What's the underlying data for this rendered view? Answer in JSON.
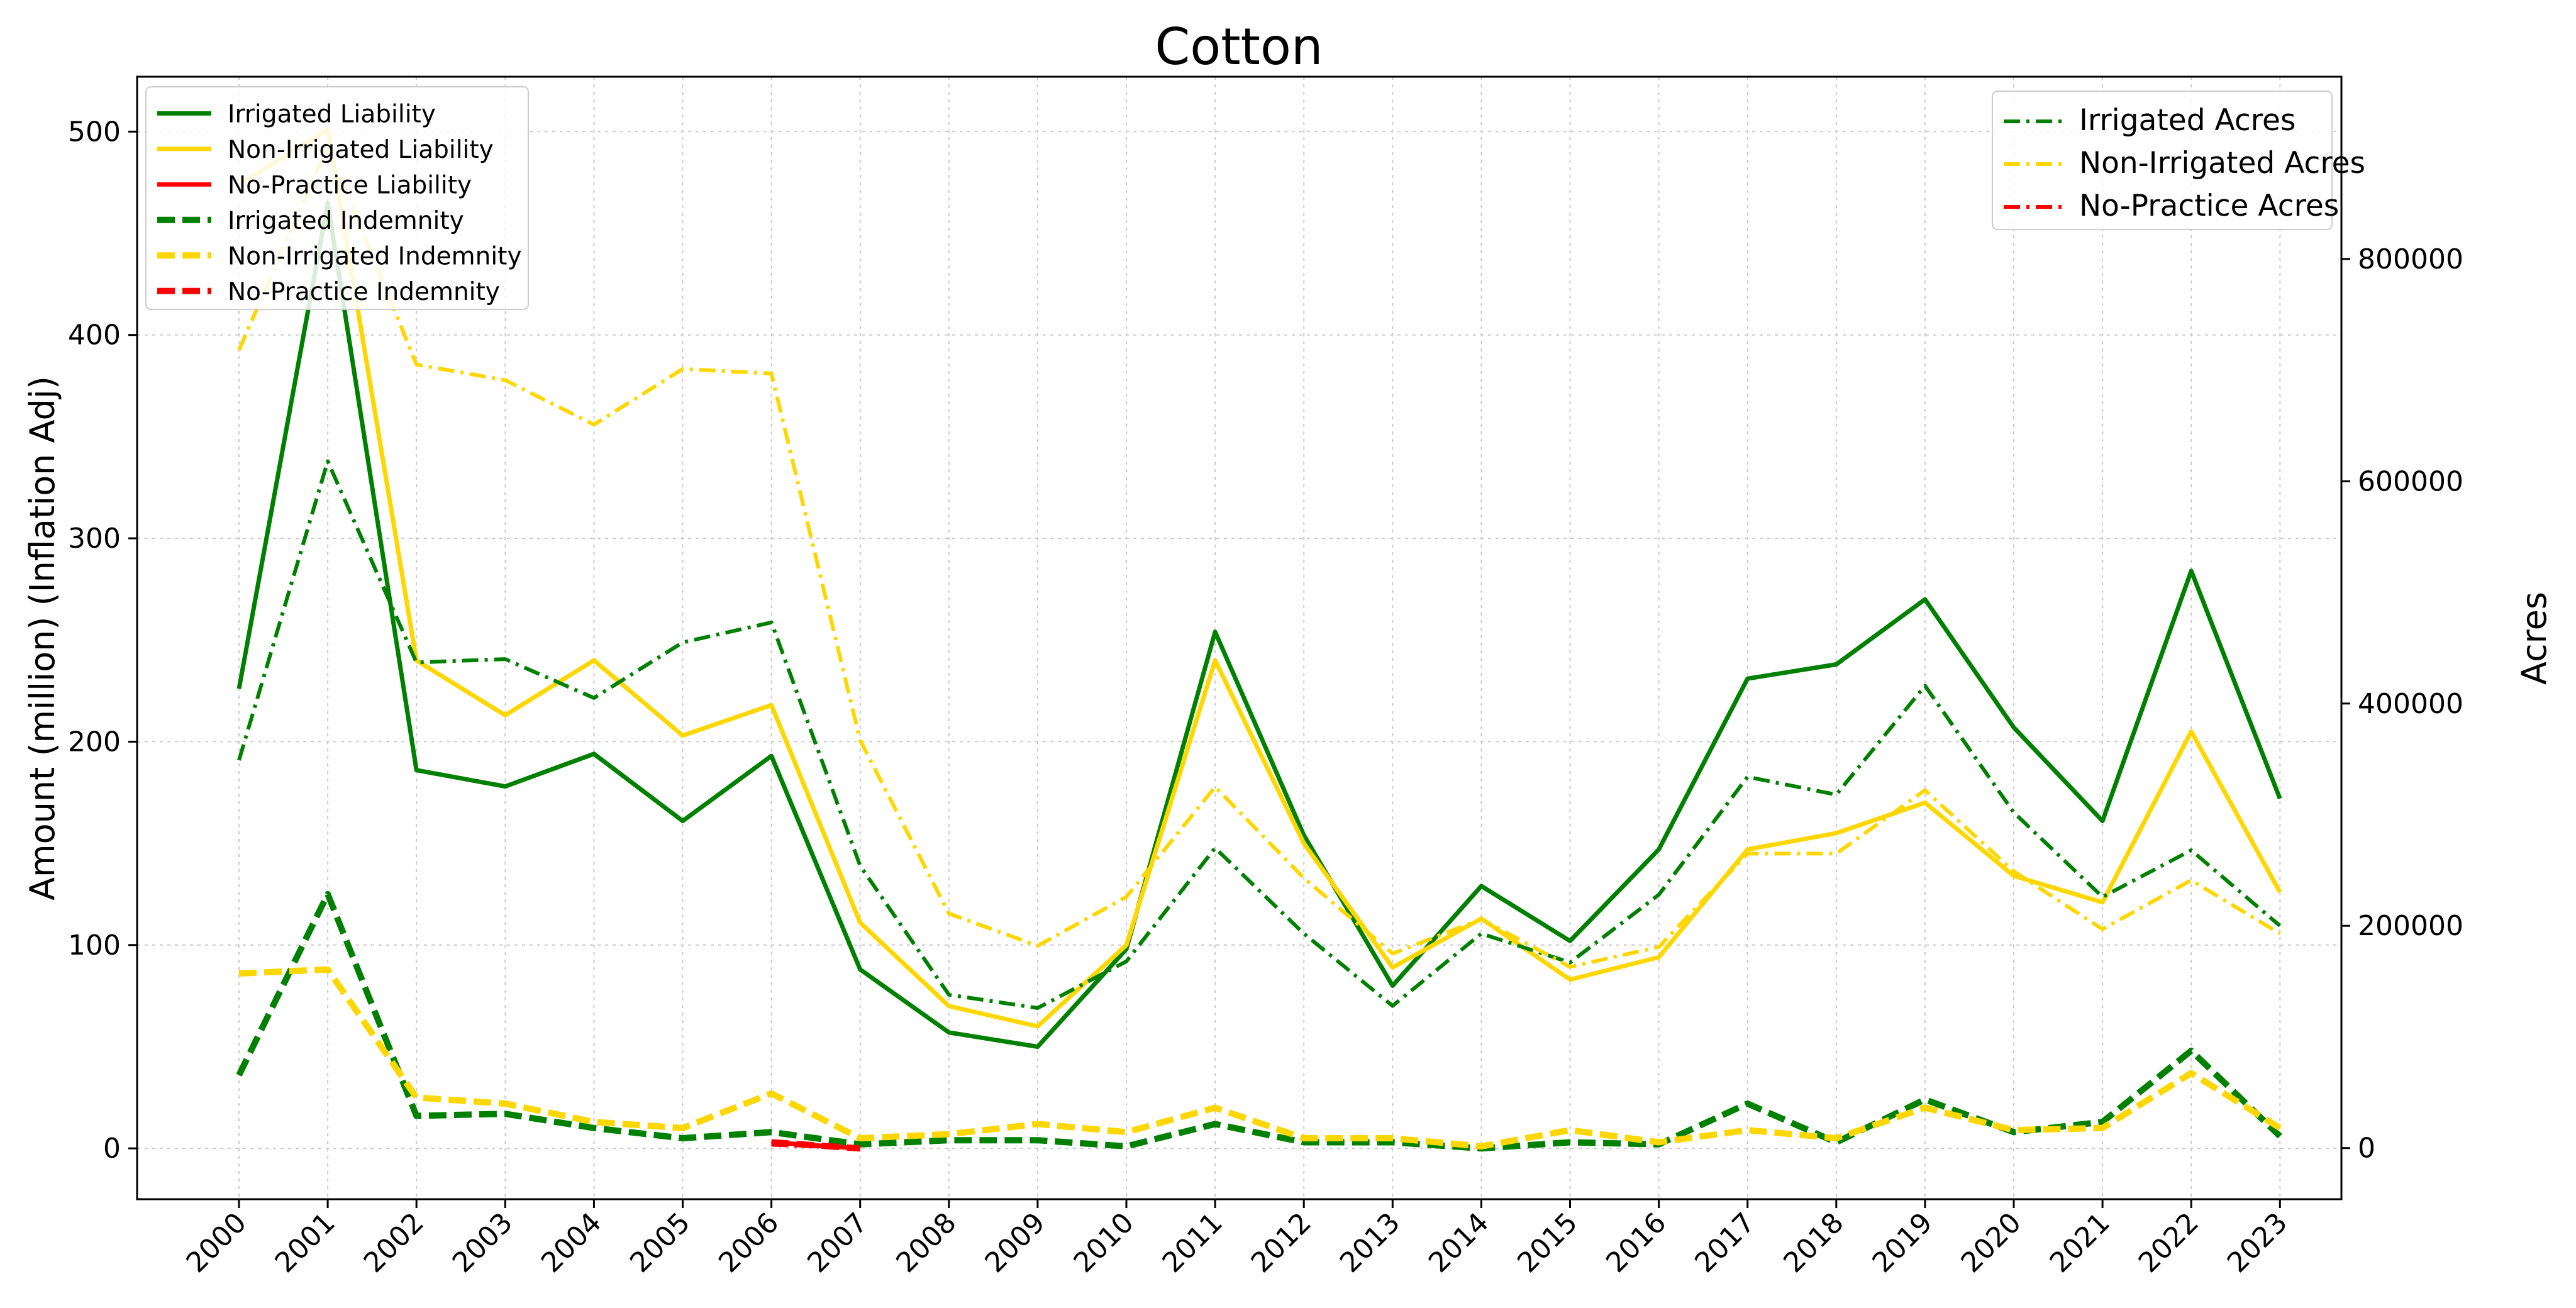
{
  "chart_data": {
    "type": "line",
    "title": "Cotton",
    "ylabel_left": "Amount (million) (Inflation Adj)",
    "ylabel_right": "Acres",
    "xlabel": "",
    "x": [
      "2000",
      "2001",
      "2002",
      "2003",
      "2004",
      "2005",
      "2006",
      "2007",
      "2008",
      "2009",
      "2010",
      "2011",
      "2012",
      "2013",
      "2014",
      "2015",
      "2016",
      "2017",
      "2018",
      "2019",
      "2020",
      "2021",
      "2022",
      "2023"
    ],
    "ylim_left": [
      -25,
      527
    ],
    "ylim_right": [
      -46000,
      964000
    ],
    "yticks_left": [
      0,
      100,
      200,
      300,
      400,
      500
    ],
    "yticks_right": [
      0,
      200000,
      400000,
      600000,
      800000
    ],
    "grid": true,
    "legend_left_placement": "upper-left",
    "legend_right_placement": "upper-right",
    "colors": {
      "irrigated": "#008000",
      "non_irrigated": "#FFD700",
      "no_practice": "#FF0000"
    },
    "series": [
      {
        "name": "Irrigated Liability",
        "axis": "left",
        "style": "solid",
        "color": "#008000",
        "values": [
          226,
          465,
          186,
          178,
          194,
          161,
          193,
          88,
          57,
          50,
          98,
          254,
          154,
          80,
          129,
          102,
          147,
          231,
          238,
          270,
          207,
          161,
          284,
          172
        ]
      },
      {
        "name": "Non-Irrigated Liability",
        "axis": "left",
        "style": "solid",
        "color": "#FFD700",
        "values": [
          474,
          501,
          240,
          213,
          240,
          203,
          218,
          111,
          70,
          60,
          100,
          240,
          150,
          89,
          113,
          83,
          94,
          147,
          155,
          170,
          134,
          121,
          205,
          126
        ]
      },
      {
        "name": "No-Practice Liability",
        "axis": "left",
        "style": "solid",
        "color": "#FF0000",
        "values": [
          null,
          null,
          null,
          null,
          null,
          null,
          3,
          0,
          null,
          null,
          null,
          null,
          null,
          null,
          null,
          null,
          null,
          null,
          null,
          null,
          null,
          null,
          null,
          null
        ]
      },
      {
        "name": "Irrigated Indemnity",
        "axis": "left",
        "style": "dashed",
        "color": "#008000",
        "values": [
          36,
          125,
          16,
          17,
          10,
          5,
          8,
          2,
          4,
          4,
          1,
          12,
          3,
          3,
          0,
          3,
          2,
          22,
          3,
          24,
          8,
          13,
          48,
          6
        ]
      },
      {
        "name": "Non-Irrigated Indemnity",
        "axis": "left",
        "style": "dashed",
        "color": "#FFD700",
        "values": [
          86,
          88,
          25,
          22,
          13,
          10,
          27,
          5,
          7,
          12,
          8,
          20,
          5,
          5,
          1,
          9,
          3,
          9,
          5,
          20,
          9,
          10,
          37,
          10
        ]
      },
      {
        "name": "No-Practice Indemnity",
        "axis": "left",
        "style": "dashed",
        "color": "#FF0000",
        "values": [
          null,
          null,
          null,
          null,
          null,
          null,
          3,
          0,
          null,
          null,
          null,
          null,
          null,
          null,
          null,
          null,
          null,
          null,
          null,
          null,
          null,
          null,
          null,
          null
        ]
      },
      {
        "name": "Irrigated Acres",
        "axis": "right",
        "style": "dashdot",
        "color": "#008000",
        "values": [
          349000,
          618000,
          437000,
          440000,
          405000,
          455000,
          473000,
          254000,
          138000,
          126000,
          168000,
          270000,
          193000,
          128000,
          193000,
          167000,
          228000,
          334000,
          318000,
          416000,
          302000,
          226000,
          268000,
          200000
        ]
      },
      {
        "name": "Non-Irrigated Acres",
        "axis": "right",
        "style": "dashdot",
        "color": "#FFD700",
        "values": [
          718000,
          902000,
          705000,
          691000,
          651000,
          701000,
          697000,
          367000,
          211000,
          182000,
          226000,
          325000,
          243000,
          175000,
          206000,
          163000,
          181000,
          265000,
          265000,
          322000,
          249000,
          197000,
          241000,
          193000
        ]
      },
      {
        "name": "No-Practice Acres",
        "axis": "right",
        "style": "dashdot",
        "color": "#FF0000",
        "values": [
          null,
          null,
          null,
          null,
          null,
          null,
          3000,
          0,
          null,
          null,
          null,
          null,
          null,
          null,
          null,
          null,
          null,
          null,
          null,
          null,
          null,
          null,
          null,
          null
        ]
      }
    ]
  }
}
